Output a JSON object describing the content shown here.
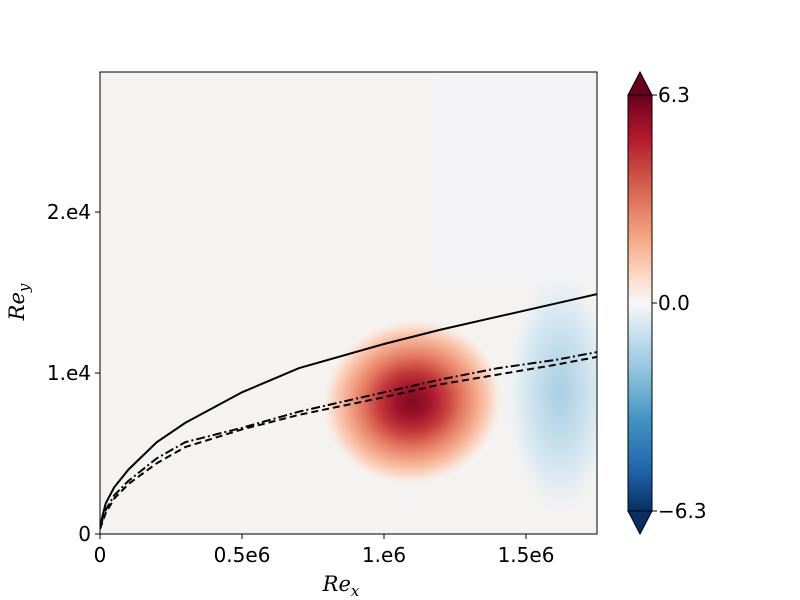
{
  "chart_data": {
    "type": "heatmap",
    "title": "",
    "xlabel": "Re_x",
    "ylabel": "Re_y",
    "xlim": [
      0,
      1750000
    ],
    "ylim": [
      0,
      28700
    ],
    "x_ticks": [
      {
        "value": 0,
        "label": "0"
      },
      {
        "value": 500000,
        "label": "0.5e6"
      },
      {
        "value": 1000000,
        "label": "1.e6"
      },
      {
        "value": 1500000,
        "label": "1.5e6"
      }
    ],
    "y_ticks": [
      {
        "value": 0,
        "label": "0"
      },
      {
        "value": 10000,
        "label": "1.e4"
      },
      {
        "value": 20000,
        "label": "2.e4"
      }
    ],
    "colormap": "RdBu_r",
    "colorbar": {
      "min": -6.3,
      "max": 6.3,
      "extend": "both",
      "ticks": [
        {
          "value": 6.3,
          "label": "6.3"
        },
        {
          "value": 0.0,
          "label": "0.0"
        },
        {
          "value": -6.3,
          "label": "−6.3"
        }
      ]
    },
    "field_features": [
      {
        "sign": "positive",
        "peak_value": 6.3,
        "center": [
          1100000,
          8200
        ],
        "extent_x": 260000,
        "extent_y": 3600
      },
      {
        "sign": "negative",
        "peak_value": -1.8,
        "center": [
          1620000,
          8800
        ],
        "extent_x": 160000,
        "extent_y": 5500
      }
    ],
    "series": [
      {
        "style": "solid",
        "color": "#000000",
        "x": [
          0,
          20000,
          50000,
          100000,
          200000,
          300000,
          500000,
          700000,
          1000000,
          1200000,
          1400000,
          1600000,
          1750000
        ],
        "y": [
          500,
          1900,
          2900,
          4000,
          5700,
          6900,
          8800,
          10300,
          11800,
          12700,
          13500,
          14300,
          14900
        ]
      },
      {
        "style": "dashdot",
        "color": "#000000",
        "x": [
          0,
          20000,
          50000,
          100000,
          200000,
          300000,
          500000,
          700000,
          1000000,
          1200000,
          1400000,
          1600000,
          1750000
        ],
        "y": [
          400,
          1500,
          2400,
          3300,
          4700,
          5700,
          6600,
          7600,
          8800,
          9600,
          10300,
          10800,
          11300
        ]
      },
      {
        "style": "dashed",
        "color": "#000000",
        "x": [
          0,
          20000,
          50000,
          100000,
          200000,
          300000,
          500000,
          700000,
          1000000,
          1200000,
          1400000,
          1600000,
          1750000
        ],
        "y": [
          300,
          1300,
          2200,
          3100,
          4400,
          5400,
          6500,
          7400,
          8500,
          9300,
          9900,
          10500,
          11000
        ]
      }
    ]
  },
  "colors": {
    "background_field": "#f4f3f2",
    "upper_right_field": "#f4f4f6",
    "axis": "#000000"
  }
}
